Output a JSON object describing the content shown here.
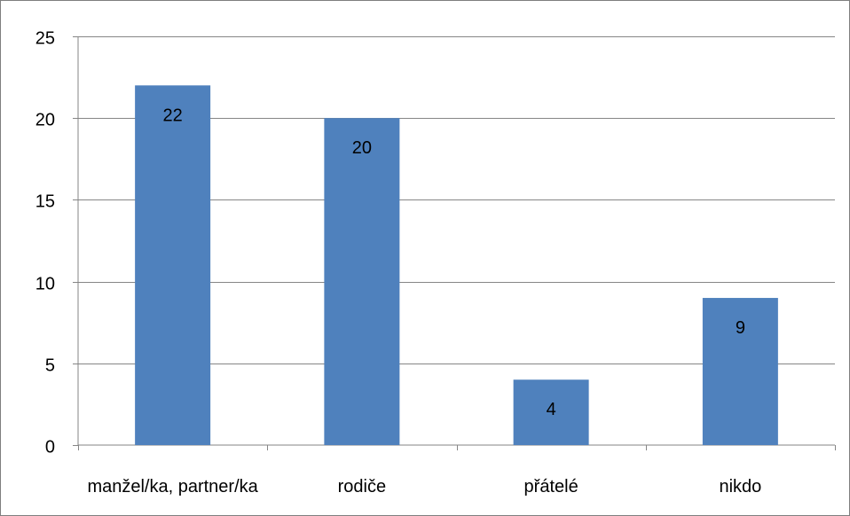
{
  "chart_data": {
    "type": "bar",
    "title": "",
    "xlabel": "",
    "ylabel": "",
    "categories": [
      "manžel/ka, partner/ka",
      "rodiče",
      "přátelé",
      "nikdo"
    ],
    "values": [
      22,
      20,
      4,
      9
    ],
    "data_labels": [
      "22",
      "20",
      "4",
      "9"
    ],
    "ylim": [
      0,
      25
    ],
    "y_ticks": [
      0,
      5,
      10,
      15,
      20,
      25
    ],
    "y_tick_labels": [
      "0",
      "5",
      "10",
      "15",
      "20",
      "25"
    ],
    "grid": true,
    "legend": false,
    "bar_color": "#4F81BD",
    "grid_color": "#868686"
  }
}
